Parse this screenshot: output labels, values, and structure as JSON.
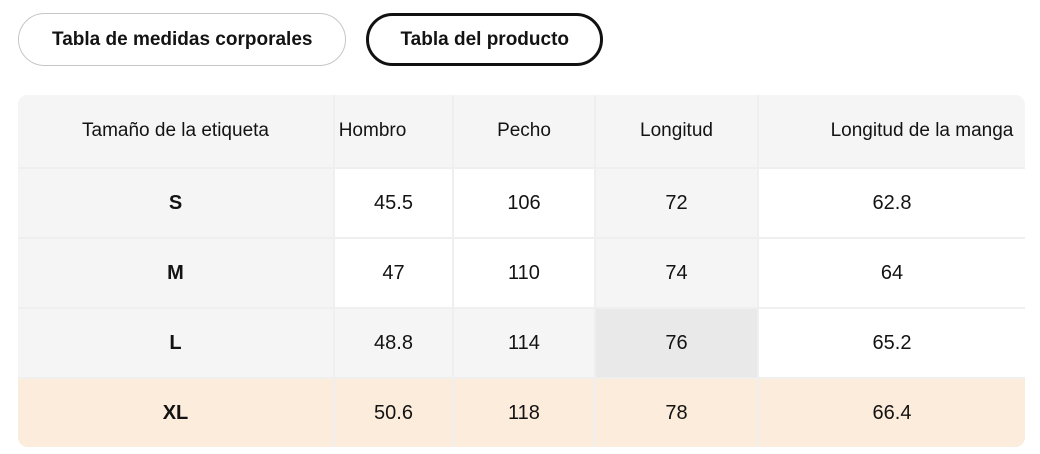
{
  "tabs": [
    {
      "label": "Tabla de medidas corporales",
      "selected": false
    },
    {
      "label": "Tabla del producto",
      "selected": true
    }
  ],
  "table": {
    "columns": [
      "Tamaño de la etiqueta",
      "Hombro",
      "Pecho",
      "Longitud",
      "Longitud de la manga"
    ],
    "rows": [
      {
        "size": "S",
        "values": [
          "45.5",
          "106",
          "72",
          "62.8"
        ]
      },
      {
        "size": "M",
        "values": [
          "47",
          "110",
          "74",
          "64"
        ]
      },
      {
        "size": "L",
        "values": [
          "48.8",
          "114",
          "76",
          "65.2"
        ]
      },
      {
        "size": "XL",
        "values": [
          "50.6",
          "118",
          "78",
          "66.4"
        ]
      }
    ],
    "highlighted_row": "L",
    "highlighted_column": "Longitud",
    "highlighted_cell": {
      "row": "L",
      "column": "Longitud",
      "value": "76"
    },
    "selected_row": "XL"
  },
  "colors": {
    "header_bg": "#f5f5f6",
    "highlight_bg": "#f5f5f6",
    "hover_cell_bg": "#e9e9ea",
    "selected_row_bg": "#fcecdb",
    "separator": "#efeff0",
    "text": "#131313",
    "tab_active_border": "#111111",
    "tab_inactive_border": "#c6c6c6"
  }
}
